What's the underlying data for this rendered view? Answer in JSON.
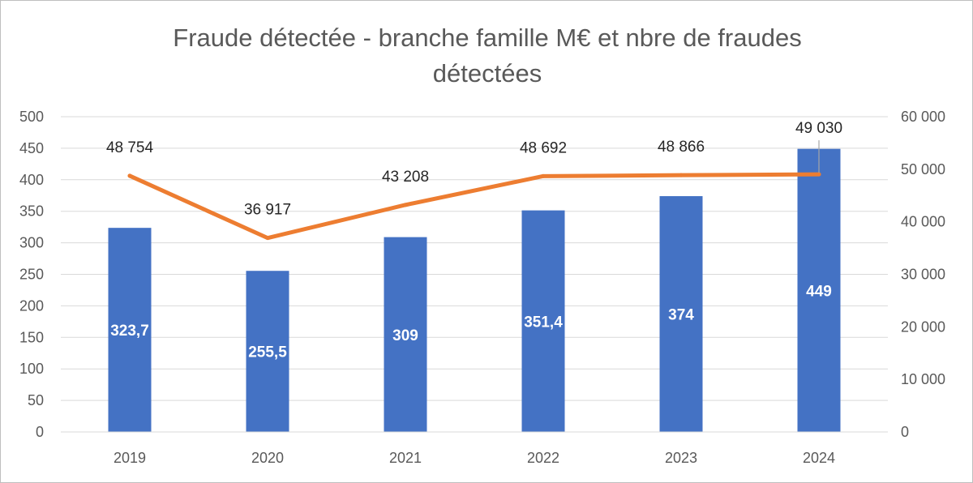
{
  "chart_data": {
    "type": "bar+line",
    "title_lines": [
      "Fraude détectée - branche famille M€ et nbre de fraudes",
      "détectées"
    ],
    "categories": [
      "2019",
      "2020",
      "2021",
      "2022",
      "2023",
      "2024"
    ],
    "bars": {
      "axis": "left",
      "color": "#4472c4",
      "values": [
        323.7,
        255.5,
        309,
        351.4,
        374,
        449
      ],
      "labels": [
        "323,7",
        "255,5",
        "309",
        "351,4",
        "374",
        "449"
      ]
    },
    "line": {
      "axis": "right",
      "color": "#ed7d31",
      "values": [
        48754,
        36917,
        43208,
        48692,
        48866,
        49030
      ],
      "labels": [
        "48 754",
        "36 917",
        "43 208",
        "48 692",
        "48 866",
        "49 030"
      ]
    },
    "left_axis": {
      "min": 0,
      "max": 500,
      "step": 50,
      "ticks": [
        "0",
        "50",
        "100",
        "150",
        "200",
        "250",
        "300",
        "350",
        "400",
        "450",
        "500"
      ]
    },
    "right_axis": {
      "min": 0,
      "max": 60000,
      "step": 10000,
      "ticks": [
        "0",
        "10 000",
        "20 000",
        "30 000",
        "40 000",
        "50 000",
        "60 000"
      ]
    },
    "grid": true,
    "legend": "none",
    "gridline_color": "#d9d9d9",
    "leader_line_color": "#a6a6a6"
  }
}
